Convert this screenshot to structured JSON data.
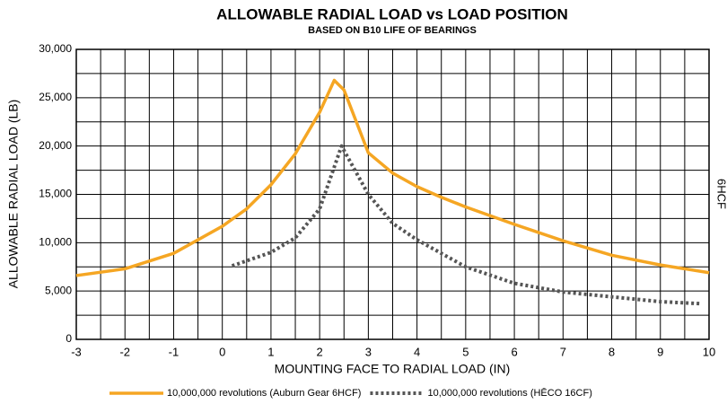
{
  "chart_data": {
    "type": "line",
    "title": "ALLOWABLE RADIAL LOAD vs LOAD POSITION",
    "subtitle": "BASED ON B10 LIFE OF BEARINGS",
    "x_label": "MOUNTING FACE TO RADIAL LOAD (IN)",
    "y_label": "ALLOWABLE RADIAL LOAD (LB)",
    "side_note": "6HCF",
    "xlim": [
      -3,
      10
    ],
    "xticks": [
      -3,
      -2,
      -1,
      0,
      1,
      2,
      3,
      4,
      5,
      6,
      7,
      8,
      9,
      10
    ],
    "ylim": [
      0,
      30000
    ],
    "yticks": [
      0,
      {
        "value": 5000,
        "label": "5,000"
      },
      {
        "value": 10000,
        "label": "10,000"
      },
      {
        "value": 15000,
        "label": "15,000"
      },
      {
        "value": 20000,
        "label": "20,000"
      },
      {
        "value": 25000,
        "label": "25,000"
      },
      {
        "value": 30000,
        "label": "30,000"
      }
    ],
    "grid": true,
    "legend": "bottom",
    "series": [
      {
        "name": "10,000,000 revolutions (Auburn Gear 6HCF)",
        "color": "#f5a623",
        "style": "solid",
        "x": [
          -3,
          -2,
          -1,
          0,
          0.5,
          1,
          1.5,
          2,
          2.3,
          2.5,
          3,
          3.5,
          4,
          4.5,
          5,
          6,
          7,
          8,
          9,
          10
        ],
        "values": [
          6600,
          7300,
          8900,
          11700,
          13500,
          16000,
          19200,
          23500,
          26800,
          25800,
          19300,
          17200,
          15800,
          14700,
          13700,
          11900,
          10200,
          8700,
          7700,
          6900
        ]
      },
      {
        "name": "10,000,000 revolutions (HĒCO 16CF)",
        "color": "#555555",
        "style": "dotted",
        "x": [
          0.2,
          1,
          1.5,
          2,
          2.45,
          3,
          3.5,
          4,
          5,
          6,
          7,
          8,
          9,
          9.8
        ],
        "values": [
          7600,
          9000,
          10500,
          13500,
          20000,
          15000,
          12000,
          10300,
          7500,
          5800,
          4900,
          4400,
          3900,
          3700
        ]
      }
    ]
  }
}
